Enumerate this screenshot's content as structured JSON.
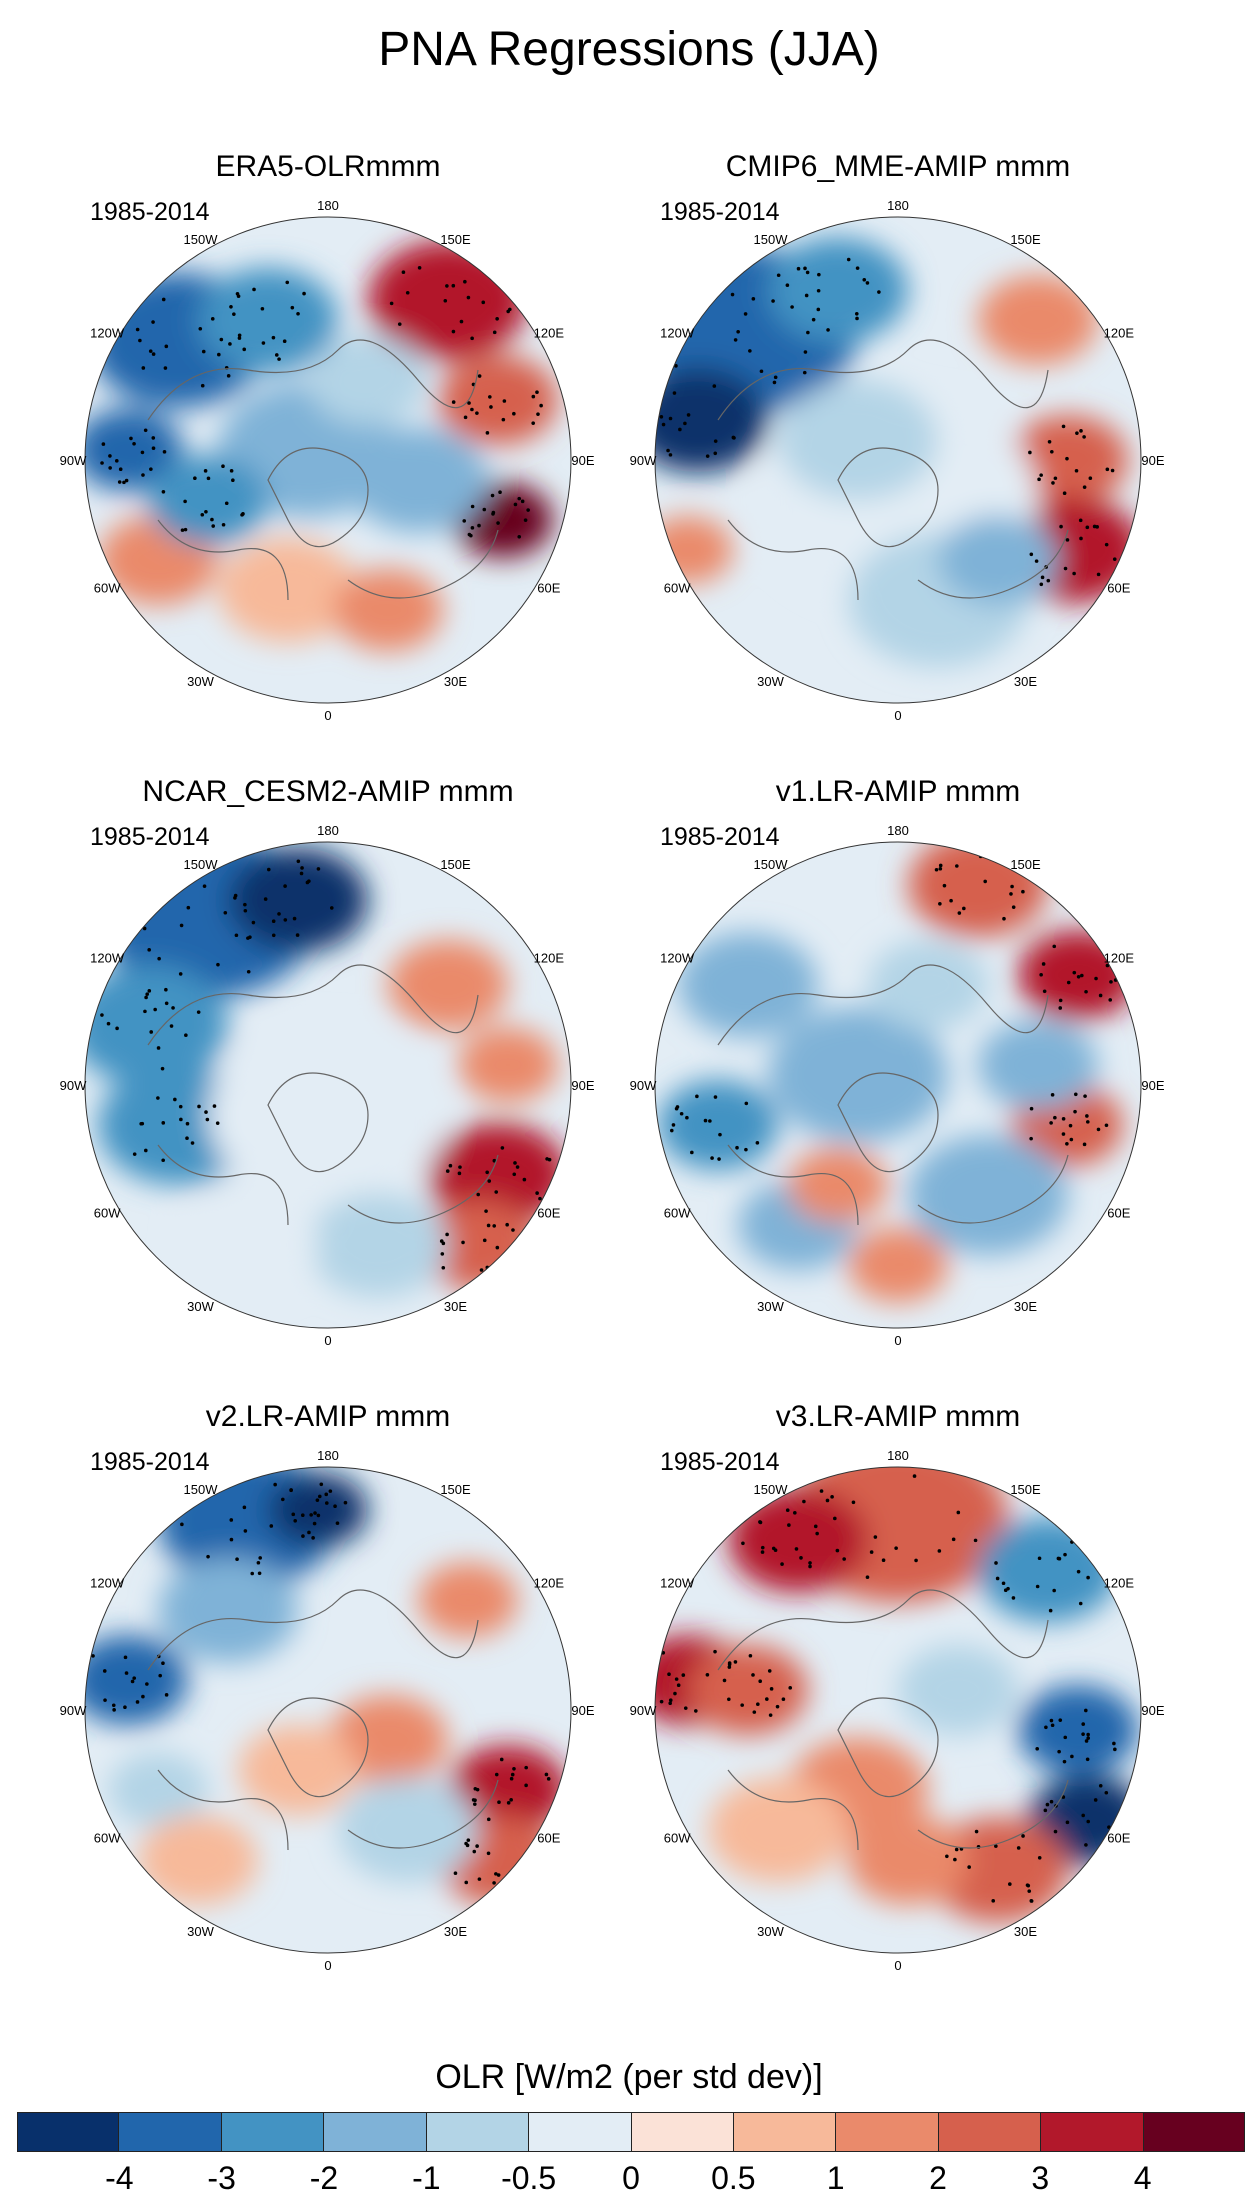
{
  "title": "PNA Regressions (JJA)",
  "panels": [
    {
      "title": "ERA5-OLRmmm",
      "period": "1985-2014"
    },
    {
      "title": "CMIP6_MME-AMIP  mmm",
      "period": "1985-2014"
    },
    {
      "title": "NCAR_CESM2-AMIP  mmm",
      "period": "1985-2014"
    },
    {
      "title": "v1.LR-AMIP  mmm",
      "period": "1985-2014"
    },
    {
      "title": "v2.LR-AMIP  mmm",
      "period": "1985-2014"
    },
    {
      "title": "v3.LR-AMIP  mmm",
      "period": "1985-2014"
    }
  ],
  "longitude_labels": [
    "180",
    "150E",
    "120E",
    "90E",
    "60E",
    "30E",
    "0",
    "30W",
    "60W",
    "90W",
    "120W",
    "150W"
  ],
  "colorbar": {
    "title": "OLR [W/m2 (per std dev)]",
    "tick_labels": [
      "-4",
      "-3",
      "-2",
      "-1",
      "-0.5",
      "0",
      "0.5",
      "1",
      "2",
      "3",
      "4"
    ],
    "colors": [
      "#08306b",
      "#2166ac",
      "#4393c3",
      "#7fb2d7",
      "#b3d4e6",
      "#e3edf5",
      "#fbe2d7",
      "#f7b99a",
      "#ea8a6b",
      "#d6604d",
      "#b2182b",
      "#67001f"
    ]
  }
}
